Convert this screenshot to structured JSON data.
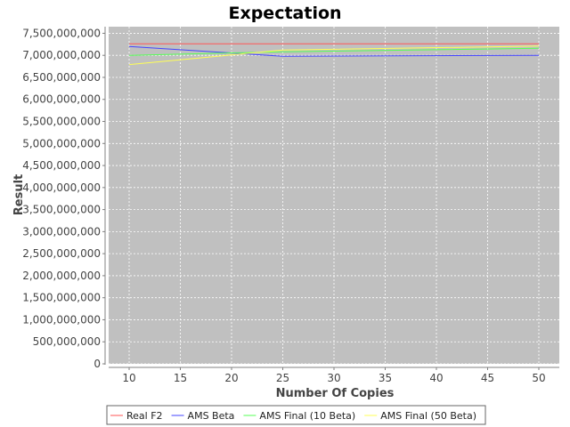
{
  "chart_data": {
    "type": "line",
    "title": "Expectation",
    "xlabel": "Number Of Copies",
    "ylabel": "Result",
    "x": [
      10,
      25,
      50
    ],
    "xticks": [
      10,
      15,
      20,
      25,
      30,
      35,
      40,
      45,
      50
    ],
    "xlim": [
      8,
      52
    ],
    "yticks": [
      0,
      500000000,
      1000000000,
      1500000000,
      2000000000,
      2500000000,
      3000000000,
      3500000000,
      4000000000,
      4500000000,
      5000000000,
      5500000000,
      6000000000,
      6500000000,
      7000000000,
      7500000000
    ],
    "ylim": [
      0,
      7650000000
    ],
    "grid": true,
    "legend_position": "bottom",
    "background": "#c0c0c0",
    "series": [
      {
        "name": "Real F2",
        "color": "#ff5555",
        "values": [
          7260000000,
          7260000000,
          7260000000
        ]
      },
      {
        "name": "AMS Beta",
        "color": "#4444ff",
        "values": [
          7200000000,
          6980000000,
          7000000000
        ]
      },
      {
        "name": "AMS Final (10 Beta)",
        "color": "#55ff55",
        "values": [
          7000000000,
          7080000000,
          7160000000
        ]
      },
      {
        "name": "AMS Final (50 Beta)",
        "color": "#ffff55",
        "values": [
          6790000000,
          7120000000,
          7210000000
        ]
      }
    ]
  }
}
